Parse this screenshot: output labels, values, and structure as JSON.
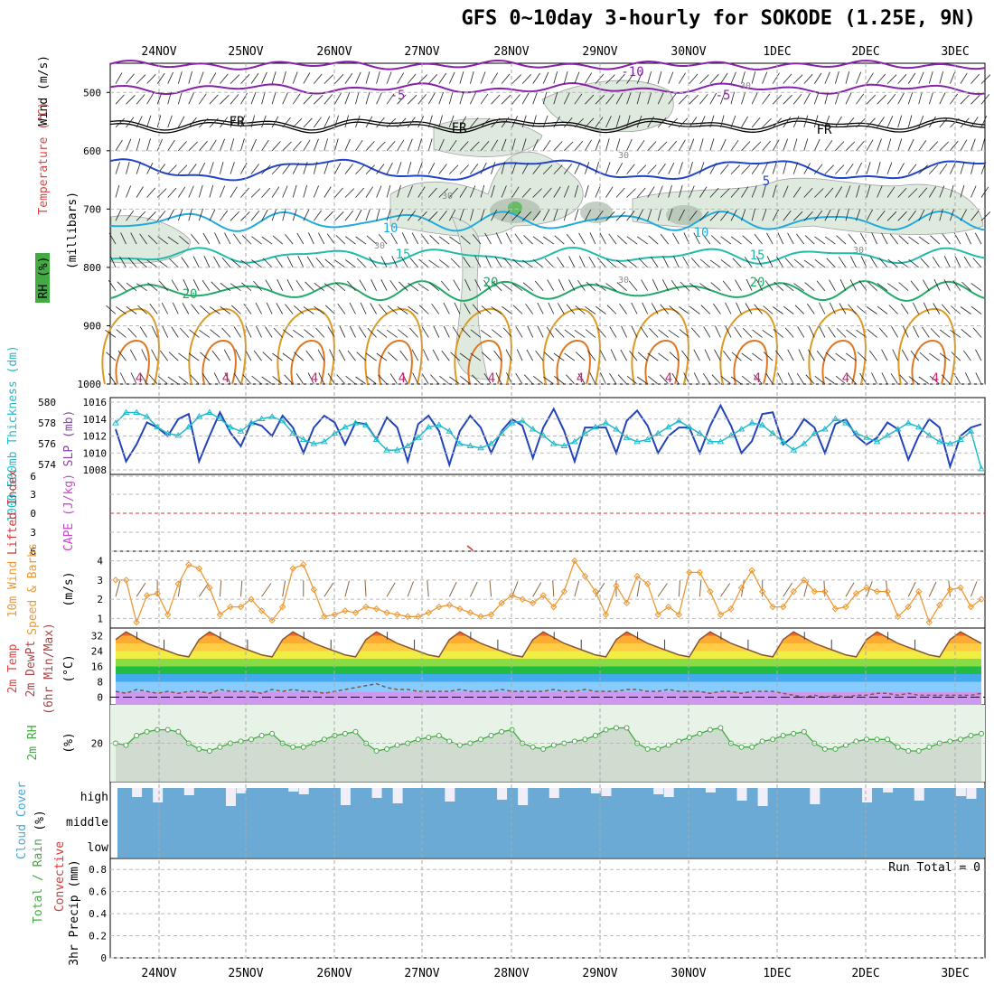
{
  "title": "GFS 0~10day 3-hourly for SOKODE (1.25E, 9N)",
  "dates": [
    "24NOV",
    "25NOV",
    "26NOV",
    "27NOV",
    "28NOV",
    "29NOV",
    "30NOV",
    "1DEC",
    "2DEC",
    "3DEC"
  ],
  "colors": {
    "temp_contour_5": "#2244cc",
    "temp_contour_10": "#22aadd",
    "temp_contour_15": "#22bbaa",
    "temp_contour_20": "#22aa66",
    "temp_contour_warm": "#dd9922",
    "temp_contour_neg": "#8822aa",
    "rh_fill": "#dce8dc",
    "slp_line": "#2244bb",
    "thickness_line": "#22bbcc",
    "wind_speed_line": "#ee9933",
    "rh2m_line": "#44aa44",
    "rh2m_fill": "#e8f3e8",
    "cloud_fill": "#6aaad4",
    "lifted_index": "#dd3333",
    "cape": "#cc44cc"
  },
  "panels": {
    "upper_air": {
      "ylabel_left": "Wind (m/s)",
      "ylabel_temp": "Temperature (°C)",
      "ylabel_rh": "RH (%)",
      "ylabel_units": "(millibars)",
      "yticks": [
        "500",
        "600",
        "700",
        "800",
        "900",
        "1000"
      ],
      "contour_labels": [
        "-10",
        "-5",
        "FR",
        "5",
        "10",
        "15",
        "20",
        "30",
        "4"
      ]
    },
    "slp_thickness": {
      "ylabel_thickness": "1000-500mb Thickness (dm)",
      "ylabel_slp": "SLP (mb)",
      "left_ticks": [
        "580",
        "578",
        "576",
        "574"
      ],
      "right_ticks": [
        "1016",
        "1014",
        "1012",
        "1010",
        "1008"
      ]
    },
    "cape_li": {
      "ylabel_li": "Lifted Index",
      "ylabel_cape": "CAPE (J/kg)",
      "ticks": [
        "6",
        "3",
        "0",
        "3",
        "6"
      ]
    },
    "wind10m": {
      "ylabel_main": "10m Wind",
      "ylabel_sub": "Speed & Barbs",
      "ylabel_units": "(m/s)",
      "ticks": [
        "4",
        "3",
        "2",
        "1"
      ]
    },
    "temp2m": {
      "ylabel_a": "2m Temp",
      "ylabel_b": "2m DewPt",
      "ylabel_c": "(6hr Min/Max)",
      "ylabel_units": "(°C)",
      "ticks": [
        "32",
        "24",
        "16",
        "8",
        "0"
      ]
    },
    "rh2m": {
      "ylabel_main": "2m RH",
      "ylabel_units": "(%)",
      "ticks": [
        "20"
      ]
    },
    "cloud": {
      "ylabel_main": "Cloud Cover",
      "ylabel_units": "(%)",
      "levels": [
        "high",
        "middle",
        "low"
      ]
    },
    "precip": {
      "ylabel_a": "Total / Rain",
      "ylabel_b": "Convective",
      "ylabel_units": "3hr Precip (mm)",
      "ticks": [
        "0.8",
        "0.6",
        "0.4",
        "0.2",
        "0"
      ],
      "run_total": "Run Total = 0"
    }
  },
  "chart_data": [
    {
      "type": "line",
      "title": "",
      "ylabel": "SLP (mb)",
      "series": [
        {
          "name": "SLP (mb)",
          "values": [
            1012.8,
            1009,
            1011,
            1013.6,
            1013,
            1012,
            1014,
            1014.6,
            1009,
            1012,
            1014.8,
            1012.4,
            1010.8,
            1013.6,
            1013.2,
            1012,
            1014.4,
            1013,
            1010,
            1013,
            1014.4,
            1013.6,
            1011,
            1013.6,
            1013.4,
            1011.6,
            1014.2,
            1013,
            1009,
            1013.4,
            1014.4,
            1012.6,
            1008.6,
            1012.6,
            1014.4,
            1013,
            1010,
            1012.6,
            1014,
            1013.2,
            1009.4,
            1013,
            1015.2,
            1012.6,
            1009,
            1013,
            1013,
            1013,
            1010,
            1013.8,
            1015,
            1013.2,
            1010,
            1012,
            1013,
            1013,
            1010,
            1013.2,
            1015.6,
            1013.2,
            1010,
            1011.4,
            1014.6,
            1014.8,
            1011,
            1012,
            1014,
            1013,
            1010,
            1013.4,
            1014,
            1012,
            1011,
            1011.8,
            1013.6,
            1012.8,
            1009.2,
            1012,
            1014,
            1013,
            1008.4,
            1012,
            1013,
            1013.4
          ]
        }
      ],
      "ylim": [
        1008,
        1016
      ]
    },
    {
      "type": "line",
      "title": "",
      "ylabel": "1000-500mb Thickness (dm)",
      "series": [
        {
          "name": "1000-500mb Thickness (dm)",
          "values": [
            578,
            579,
            579,
            578.6,
            577.6,
            577,
            576.8,
            577.6,
            578.6,
            579,
            578.4,
            577.6,
            577.2,
            578,
            578.4,
            578.6,
            578.2,
            577,
            576.4,
            576,
            576.2,
            577,
            577.6,
            578,
            577.8,
            576.4,
            575.4,
            575.4,
            575.8,
            576.6,
            577.6,
            577.8,
            577.2,
            576,
            575.8,
            575.6,
            576,
            577,
            578,
            578.2,
            577.4,
            576.8,
            576,
            575.8,
            576.2,
            577,
            577.6,
            578,
            577.4,
            576.6,
            576.2,
            576.4,
            577,
            577.6,
            578.2,
            577.6,
            577,
            576.2,
            576.2,
            576.8,
            577.4,
            578,
            577.8,
            577,
            576.2,
            575.4,
            576,
            577,
            577.4,
            578.4,
            578,
            577,
            576.6,
            576.2,
            576.8,
            577.4,
            578,
            577.6,
            576.8,
            576.2,
            576,
            576.4,
            577.2,
            573.6
          ]
        }
      ],
      "ylim": [
        573.5,
        580
      ]
    },
    {
      "type": "line",
      "title": "",
      "ylabel": "10m Wind Speed (m/s)",
      "series": [
        {
          "name": "10m Wind Speed",
          "values": [
            3,
            3,
            0.8,
            2.2,
            2.3,
            1.2,
            2.8,
            3.8,
            3.6,
            2.6,
            1.2,
            1.6,
            1.6,
            2,
            1.4,
            0.9,
            1.6,
            3.6,
            3.8,
            2.5,
            1.1,
            1.2,
            1.4,
            1.3,
            1.6,
            1.5,
            1.3,
            1.2,
            1.1,
            1.1,
            1.3,
            1.6,
            1.7,
            1.5,
            1.3,
            1.1,
            1.2,
            1.8,
            2.2,
            2,
            1.8,
            2.2,
            1.6,
            2.4,
            4,
            3.2,
            2.4,
            1.2,
            2.7,
            1.8,
            3.2,
            2.8,
            1.2,
            1.6,
            1.2,
            3.4,
            3.4,
            2.4,
            1.2,
            1.5,
            2.6,
            3.5,
            2.4,
            1.6,
            1.6,
            2.4,
            3,
            2.4,
            2.4,
            1.5,
            1.6,
            2.3,
            2.6,
            2.4,
            2.4,
            1.1,
            1.6,
            2.4,
            0.8,
            1.7,
            2.5,
            2.6,
            1.6,
            2
          ]
        }
      ],
      "ylim": [
        0.5,
        4.5
      ]
    },
    {
      "type": "area",
      "title": "",
      "ylabel": "2m Temp (°C)",
      "series": [
        {
          "name": "2m Temp",
          "values": [
            30,
            34,
            31,
            28,
            26,
            24,
            22,
            21,
            30,
            34,
            31,
            28,
            26,
            24,
            22,
            21,
            30,
            34,
            31,
            28,
            26,
            24,
            22,
            21,
            30,
            34,
            31,
            28,
            26,
            24,
            22,
            21,
            30,
            34,
            31,
            28,
            26,
            24,
            22,
            21,
            30,
            34,
            31,
            28,
            26,
            24,
            22,
            21,
            30,
            34,
            31,
            28,
            26,
            24,
            22,
            21,
            30,
            34,
            31,
            28,
            26,
            24,
            22,
            21,
            30,
            34,
            31,
            28,
            26,
            24,
            22,
            21,
            30,
            34,
            31,
            28,
            26,
            24,
            22,
            21,
            30,
            34,
            31,
            28
          ]
        },
        {
          "name": "2m DewPt",
          "values": [
            3,
            2,
            4,
            3,
            2,
            3,
            2,
            3,
            3,
            2,
            4,
            3,
            3,
            3,
            2,
            4,
            3,
            4,
            3,
            3,
            2,
            3,
            4,
            5,
            6,
            7,
            5,
            4,
            4,
            3,
            3,
            3,
            3,
            4,
            3,
            3,
            3,
            4,
            3,
            3,
            3,
            3,
            4,
            3,
            3,
            4,
            3,
            3,
            3,
            4,
            4,
            3,
            3,
            4,
            3,
            3,
            3,
            2,
            3,
            3,
            2,
            3,
            3,
            3,
            2,
            1,
            0,
            1,
            0,
            1,
            0,
            1,
            1,
            2,
            2,
            1,
            2,
            1,
            1,
            1,
            1,
            1,
            1,
            2
          ]
        }
      ],
      "ylim": [
        -4,
        36
      ]
    },
    {
      "type": "area",
      "title": "",
      "ylabel": "2m RH (%)",
      "series": [
        {
          "name": "2m RH",
          "values": [
            20,
            19,
            24,
            26,
            27,
            27,
            26,
            20,
            17,
            16,
            18,
            20,
            21,
            22,
            24,
            25,
            20,
            18,
            18,
            20,
            22,
            24,
            25,
            26,
            20,
            16,
            17,
            19,
            20,
            22,
            23,
            24,
            21,
            19,
            20,
            22,
            24,
            26,
            27,
            20,
            18,
            17,
            19,
            20,
            21,
            22,
            24,
            27,
            28,
            28,
            20,
            17,
            17,
            19,
            21,
            23,
            25,
            27,
            28,
            20,
            18,
            18,
            21,
            22,
            24,
            25,
            26,
            20,
            17,
            17,
            19,
            21,
            22,
            22,
            22,
            18,
            16,
            16,
            18,
            20,
            21,
            22,
            24,
            25
          ]
        }
      ],
      "ylim": [
        0,
        40
      ]
    },
    {
      "type": "bar",
      "title": "",
      "ylabel": "3hr Precip (mm)",
      "series": [
        {
          "name": "3hr Precip",
          "values": [
            0,
            0,
            0,
            0,
            0,
            0,
            0,
            0,
            0,
            0,
            0,
            0,
            0,
            0,
            0,
            0,
            0,
            0,
            0,
            0,
            0,
            0,
            0,
            0,
            0,
            0,
            0,
            0,
            0,
            0,
            0,
            0,
            0,
            0,
            0,
            0,
            0,
            0,
            0,
            0,
            0,
            0,
            0,
            0,
            0,
            0,
            0,
            0,
            0,
            0,
            0,
            0,
            0,
            0,
            0,
            0,
            0,
            0,
            0,
            0,
            0,
            0,
            0,
            0,
            0,
            0,
            0,
            0,
            0,
            0,
            0,
            0,
            0,
            0,
            0,
            0,
            0,
            0,
            0,
            0,
            0,
            0,
            0,
            0
          ]
        }
      ],
      "ylim": [
        0,
        0.9
      ]
    }
  ]
}
